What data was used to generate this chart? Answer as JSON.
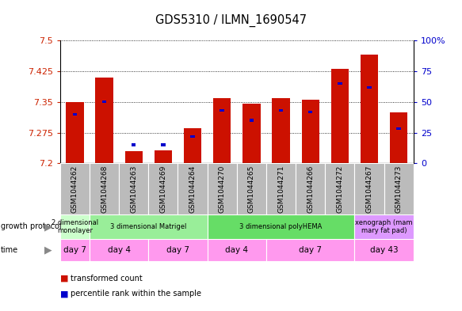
{
  "title": "GDS5310 / ILMN_1690547",
  "samples": [
    "GSM1044262",
    "GSM1044268",
    "GSM1044263",
    "GSM1044269",
    "GSM1044264",
    "GSM1044270",
    "GSM1044265",
    "GSM1044271",
    "GSM1044266",
    "GSM1044272",
    "GSM1044267",
    "GSM1044273"
  ],
  "transformed_counts": [
    7.35,
    7.41,
    7.23,
    7.232,
    7.285,
    7.36,
    7.345,
    7.36,
    7.355,
    7.43,
    7.465,
    7.325
  ],
  "percentile_ranks": [
    40,
    50,
    15,
    15,
    22,
    43,
    35,
    43,
    42,
    65,
    62,
    28
  ],
  "ymin": 7.2,
  "ymax": 7.5,
  "yticks": [
    7.2,
    7.275,
    7.35,
    7.425,
    7.5
  ],
  "ytick_labels": [
    "7.2",
    "7.275",
    "7.35",
    "7.425",
    "7.5"
  ],
  "right_yticks_pct": [
    0,
    25,
    50,
    75,
    100
  ],
  "right_ytick_labels": [
    "0",
    "25",
    "50",
    "75",
    "100%"
  ],
  "bar_color": "#cc1100",
  "blue_color": "#0000cc",
  "sample_bg_color": "#bbbbbb",
  "growth_protocol_groups": [
    {
      "label": "2 dimensional\nmonolayer",
      "start": 0,
      "end": 1,
      "color": "#ccffcc"
    },
    {
      "label": "3 dimensional Matrigel",
      "start": 1,
      "end": 5,
      "color": "#99ee99"
    },
    {
      "label": "3 dimensional polyHEMA",
      "start": 5,
      "end": 10,
      "color": "#66dd66"
    },
    {
      "label": "xenograph (mam\nmary fat pad)",
      "start": 10,
      "end": 12,
      "color": "#dd99ff"
    }
  ],
  "time_groups": [
    {
      "label": "day 7",
      "start": 0,
      "end": 1
    },
    {
      "label": "day 4",
      "start": 1,
      "end": 3
    },
    {
      "label": "day 7",
      "start": 3,
      "end": 5
    },
    {
      "label": "day 4",
      "start": 5,
      "end": 7
    },
    {
      "label": "day 7",
      "start": 7,
      "end": 10
    },
    {
      "label": "day 43",
      "start": 10,
      "end": 12
    }
  ],
  "time_color": "#ff99ee",
  "legend_items": [
    {
      "color": "#cc1100",
      "label": "transformed count"
    },
    {
      "color": "#0000cc",
      "label": "percentile rank within the sample"
    }
  ],
  "left_color": "#cc2200",
  "right_color": "#0000cc"
}
